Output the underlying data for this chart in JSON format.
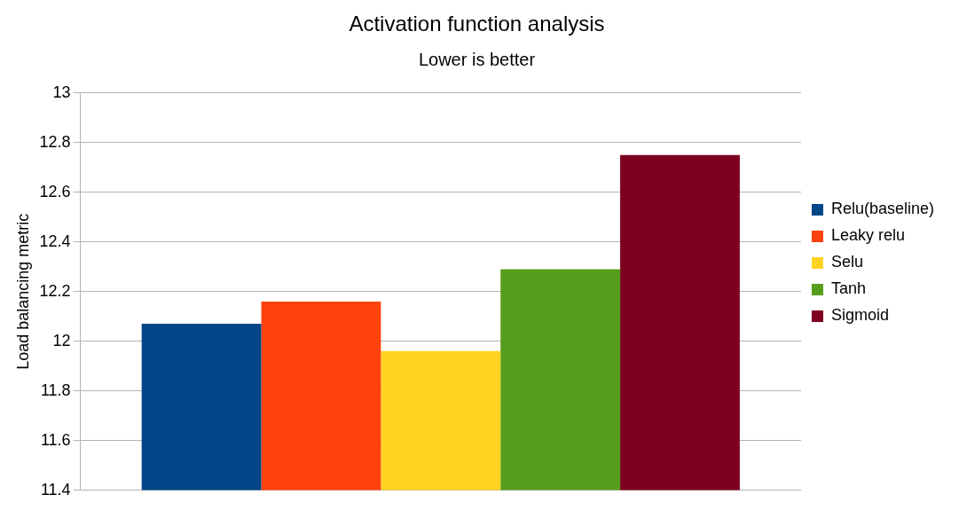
{
  "chart_data": {
    "type": "bar",
    "title": "Activation function analysis",
    "subtitle": "Lower is better",
    "ylabel": "Load balancing metric",
    "categories": [
      null
    ],
    "series": [
      {
        "name": "Relu(baseline)",
        "color": "#004586",
        "values": [
          12.07
        ]
      },
      {
        "name": "Leaky relu",
        "color": "#ff420e",
        "values": [
          12.16
        ]
      },
      {
        "name": "Selu",
        "color": "#ffd320",
        "values": [
          11.96
        ]
      },
      {
        "name": "Tanh",
        "color": "#579d1c",
        "values": [
          12.29
        ]
      },
      {
        "name": "Sigmoid",
        "color": "#7e0021",
        "values": [
          12.75
        ]
      }
    ],
    "ylim": [
      11.4,
      13
    ],
    "yticks": [
      11.4,
      11.6,
      11.8,
      12,
      12.2,
      12.4,
      12.6,
      12.8,
      13
    ],
    "grid": "y",
    "legend": "right"
  }
}
